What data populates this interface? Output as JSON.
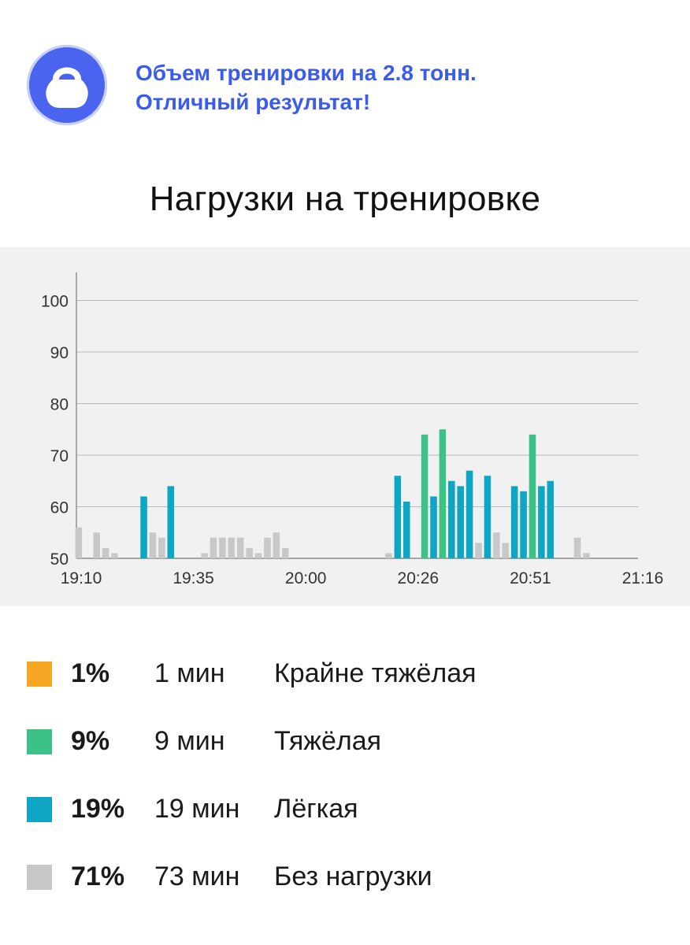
{
  "banner": {
    "icon": "kettlebell-icon",
    "line1": "Объем тренировки на 2.8 тонн.",
    "line2": "Отличный результат!",
    "color": "#3b5bea",
    "badge_color": "#4a64ef"
  },
  "title": "Нагрузки на тренировке",
  "chart_data": {
    "type": "bar",
    "title": "",
    "xlabel": "",
    "ylabel": "",
    "x_ticks": [
      "19:10",
      "19:35",
      "20:00",
      "20:26",
      "20:51",
      "21:16"
    ],
    "y_ticks": [
      "50",
      "60",
      "70",
      "80",
      "90",
      "100"
    ],
    "ylim": [
      50,
      105
    ],
    "grid": true,
    "bar_width_minutes": 1.5,
    "colors": {
      "extreme": "#f5a623",
      "hard": "#3cc286",
      "light": "#0fa6c6",
      "none": "#c8c8c8"
    },
    "bars": [
      {
        "t": 0.5,
        "v": 56,
        "zone": "none"
      },
      {
        "t": 4.5,
        "v": 55,
        "zone": "none"
      },
      {
        "t": 6.5,
        "v": 52,
        "zone": "none"
      },
      {
        "t": 8.5,
        "v": 51,
        "zone": "none"
      },
      {
        "t": 15,
        "v": 62,
        "zone": "light"
      },
      {
        "t": 17,
        "v": 55,
        "zone": "none"
      },
      {
        "t": 19,
        "v": 54,
        "zone": "none"
      },
      {
        "t": 21,
        "v": 64,
        "zone": "light"
      },
      {
        "t": 28.5,
        "v": 51,
        "zone": "none"
      },
      {
        "t": 30.5,
        "v": 54,
        "zone": "none"
      },
      {
        "t": 32.5,
        "v": 54,
        "zone": "none"
      },
      {
        "t": 34.5,
        "v": 54,
        "zone": "none"
      },
      {
        "t": 36.5,
        "v": 54,
        "zone": "none"
      },
      {
        "t": 38.5,
        "v": 52,
        "zone": "none"
      },
      {
        "t": 40.5,
        "v": 51,
        "zone": "none"
      },
      {
        "t": 42.5,
        "v": 54,
        "zone": "none"
      },
      {
        "t": 44.5,
        "v": 55,
        "zone": "none"
      },
      {
        "t": 46.5,
        "v": 52,
        "zone": "none"
      },
      {
        "t": 69.5,
        "v": 51,
        "zone": "none"
      },
      {
        "t": 71.5,
        "v": 66,
        "zone": "light"
      },
      {
        "t": 73.5,
        "v": 61,
        "zone": "light"
      },
      {
        "t": 77.5,
        "v": 74,
        "zone": "hard"
      },
      {
        "t": 79.5,
        "v": 62,
        "zone": "light"
      },
      {
        "t": 81.5,
        "v": 75,
        "zone": "hard"
      },
      {
        "t": 83.5,
        "v": 65,
        "zone": "light"
      },
      {
        "t": 85.5,
        "v": 64,
        "zone": "light"
      },
      {
        "t": 87.5,
        "v": 67,
        "zone": "light"
      },
      {
        "t": 89.5,
        "v": 53,
        "zone": "none"
      },
      {
        "t": 91.5,
        "v": 66,
        "zone": "light"
      },
      {
        "t": 93.5,
        "v": 55,
        "zone": "none"
      },
      {
        "t": 95.5,
        "v": 53,
        "zone": "none"
      },
      {
        "t": 97.5,
        "v": 64,
        "zone": "light"
      },
      {
        "t": 99.5,
        "v": 63,
        "zone": "light"
      },
      {
        "t": 101.5,
        "v": 74,
        "zone": "hard"
      },
      {
        "t": 103.5,
        "v": 64,
        "zone": "light"
      },
      {
        "t": 105.5,
        "v": 65,
        "zone": "light"
      },
      {
        "t": 111.5,
        "v": 54,
        "zone": "none"
      },
      {
        "t": 113.5,
        "v": 51,
        "zone": "none"
      }
    ]
  },
  "legend": [
    {
      "color": "#f5a623",
      "pct": "1%",
      "duration": "1 мин",
      "label": "Крайне тяжёлая"
    },
    {
      "color": "#3cc286",
      "pct": "9%",
      "duration": "9 мин",
      "label": "Тяжёлая"
    },
    {
      "color": "#0fa6c6",
      "pct": "19%",
      "duration": "19 мин",
      "label": "Лёгкая"
    },
    {
      "color": "#c8c8c8",
      "pct": "71%",
      "duration": "73 мин",
      "label": "Без нагрузки"
    }
  ]
}
